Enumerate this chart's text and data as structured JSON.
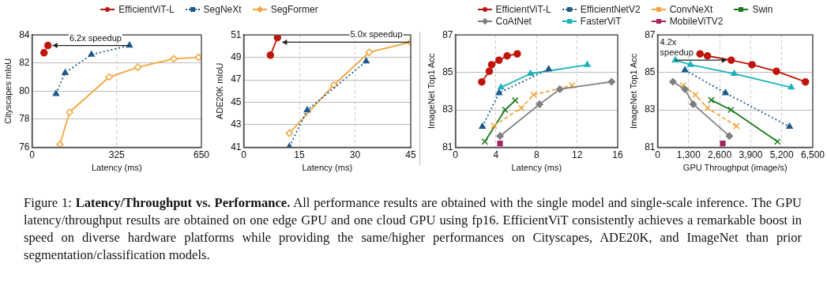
{
  "chart_data": [
    {
      "type": "line",
      "xlabel": "Latency (ms)",
      "ylabel": "Cityscapes mIoU",
      "xlim": [
        0,
        650
      ],
      "ylim": [
        76,
        84
      ],
      "xticks": [
        0,
        325,
        650
      ],
      "yticks": [
        76,
        78,
        80,
        82,
        84
      ],
      "grid": "y",
      "ref_lines": [
        {
          "axis": "x",
          "value": 325,
          "color": "#cccccc",
          "line_style": "dashed"
        }
      ],
      "legend": "top",
      "annotations": [
        {
          "text": "6.2x speedup",
          "x": 374,
          "y": 83.25
        }
      ],
      "series": [
        {
          "name": "EfficientViT-L",
          "color": "#c0150a",
          "marker": "circle",
          "line_style": "dashed",
          "x": [
            46,
            61
          ],
          "values": [
            82.73,
            83.25
          ]
        },
        {
          "name": "SegNeXt",
          "color": "#1c5a8e",
          "marker": "triangle",
          "line_style": "dotted",
          "x": [
            92,
            127,
            228,
            374
          ],
          "values": [
            79.8,
            81.3,
            82.6,
            83.25
          ]
        },
        {
          "name": "SegFormer",
          "color": "#f4a53e",
          "marker": "diamond",
          "line_style": "solid",
          "x": [
            107,
            144,
            296,
            406,
            544,
            639
          ],
          "values": [
            76.2,
            78.5,
            81.0,
            81.7,
            82.3,
            82.4
          ]
        }
      ]
    },
    {
      "type": "line",
      "xlabel": "Latency (ms)",
      "ylabel": "ADE20K mIoU",
      "xlim": [
        0,
        45
      ],
      "ylim": [
        41,
        51
      ],
      "xticks": [
        0,
        15,
        30,
        45
      ],
      "yticks": [
        41,
        43,
        45,
        47,
        49,
        51
      ],
      "grid": true,
      "annotations": [
        {
          "text": "5.0x speedup",
          "x": 44.9,
          "y": 50.35
        }
      ],
      "series": [
        {
          "color": "#c0150a",
          "marker": "circle",
          "line_style": "solid",
          "x": [
            7.2,
            9.1
          ],
          "values": [
            49.2,
            50.76
          ]
        },
        {
          "color": "#1c5a8e",
          "marker": "triangle",
          "line_style": "dotted",
          "x": [
            12.3,
            17.1,
            33.0
          ],
          "values": [
            41.05,
            44.3,
            48.65
          ]
        },
        {
          "color": "#f4a53e",
          "marker": "diamond",
          "line_style": "solid",
          "x": [
            12.3,
            24.3,
            33.8,
            44.9
          ],
          "values": [
            42.25,
            46.55,
            49.45,
            50.35
          ]
        }
      ]
    },
    {
      "type": "line",
      "xlabel": "Latency (ms)",
      "ylabel": "ImageNet Top1 Acc",
      "xlim": [
        0,
        16
      ],
      "ylim": [
        81,
        87
      ],
      "xticks": [
        0,
        4,
        8,
        12,
        16
      ],
      "yticks": [
        81,
        83,
        85,
        87
      ],
      "grid": true,
      "legend": "top",
      "series": [
        {
          "name": "EfficientViT-L",
          "color": "#c0150a",
          "marker": "circle",
          "line_style": "solid",
          "x": [
            2.6,
            3.34,
            3.57,
            4.3,
            5.1,
            6.1
          ],
          "values": [
            84.49,
            85.06,
            85.41,
            85.65,
            85.88,
            85.99
          ]
        },
        {
          "name": "CoAtNet",
          "color": "#7f7f7f",
          "marker": "diamond",
          "line_style": "solid",
          "x": [
            4.4,
            8.3,
            10.3,
            15.4
          ],
          "values": [
            81.6,
            83.3,
            84.1,
            84.5
          ]
        },
        {
          "name": "EfficientNetV2",
          "color": "#1c5a8e",
          "marker": "triangle",
          "line_style": "dotted",
          "x": [
            2.66,
            4.3,
            9.2
          ],
          "values": [
            82.1,
            83.9,
            85.17
          ]
        },
        {
          "name": "FasterViT",
          "color": "#1ab3bb",
          "marker": "triangle",
          "line_style": "solid",
          "x": [
            4.5,
            7.4,
            13.0
          ],
          "values": [
            84.2,
            84.93,
            85.4
          ]
        },
        {
          "name": "ConvNeXt",
          "color": "#f4a53e",
          "marker": "cross",
          "line_style": "dashed",
          "x": [
            3.8,
            6.5,
            7.7,
            11.5
          ],
          "values": [
            82.15,
            83.1,
            83.8,
            84.3
          ]
        },
        {
          "name": "MobileViTV2",
          "color": "#a3245e",
          "marker": "square",
          "line_style": "solid",
          "x": [
            4.4
          ],
          "values": [
            81.2
          ]
        },
        {
          "name": "Swin",
          "color": "#1a7a1a",
          "marker": "cross",
          "line_style": "solid",
          "x": [
            2.9,
            4.9,
            5.9
          ],
          "values": [
            81.3,
            83.0,
            83.5
          ]
        }
      ]
    },
    {
      "type": "line",
      "xlabel": "GPU Throughput (image/s)",
      "ylabel": "ImageNet Top1 Acc",
      "xlim": [
        0,
        6500
      ],
      "ylim": [
        81,
        87
      ],
      "xticks": [
        0,
        {
          "value": 1300,
          "label": "1,300"
        },
        {
          "value": 2600,
          "label": "2,600"
        },
        {
          "value": 3900,
          "label": "3,900"
        },
        {
          "value": 5200,
          "label": "5,200"
        },
        {
          "value": 6500,
          "label": "6,500"
        }
      ],
      "yticks": [
        81,
        83,
        85,
        87
      ],
      "grid": true,
      "annotations": [
        {
          "text": "4.2x speedup",
          "x": 745,
          "y": 85.65
        }
      ],
      "series": [
        {
          "color": "#c0150a",
          "marker": "circle",
          "line_style": "solid",
          "x": [
            1777,
            2087,
            3085,
            3956,
            4977,
            6193
          ],
          "values": [
            85.99,
            85.88,
            85.65,
            85.41,
            85.06,
            84.49
          ]
        },
        {
          "color": "#7f7f7f",
          "marker": "diamond",
          "line_style": "solid",
          "x": [
            642,
            1147,
            1491,
            3005
          ],
          "values": [
            84.5,
            84.1,
            83.3,
            81.6
          ]
        },
        {
          "color": "#1c5a8e",
          "marker": "triangle",
          "line_style": "dotted",
          "x": [
            1147,
            2844,
            5528
          ],
          "values": [
            85.12,
            83.9,
            82.1
          ]
        },
        {
          "color": "#1ab3bb",
          "marker": "triangle",
          "line_style": "solid",
          "x": [
            745,
            1376,
            3211,
            5596
          ],
          "values": [
            85.65,
            85.41,
            84.93,
            84.2
          ]
        },
        {
          "color": "#f4a53e",
          "marker": "cross",
          "line_style": "dashed",
          "x": [
            1067,
            1583,
            2087,
            3303
          ],
          "values": [
            84.3,
            83.8,
            83.1,
            82.13
          ]
        },
        {
          "color": "#a3245e",
          "marker": "square",
          "line_style": "solid",
          "x": [
            2729
          ],
          "values": [
            81.2
          ]
        },
        {
          "color": "#1a7a1a",
          "marker": "cross",
          "line_style": "solid",
          "x": [
            2248,
            3073,
            5023
          ],
          "values": [
            83.52,
            83.0,
            81.3
          ]
        }
      ]
    },
    {
      "type": "other",
      "title": "Latency/Throughput vs. Performance.",
      "annotations": [
        "Figure 1:",
        "All performance results are obtained with the single model and single-scale inference. The GPU latency/throughput results are obtained on one edge GPU and one cloud GPU using fp16. EfficientViT consistently achieves a remarkable boost in speed on diverse hardware platforms while providing the same/higher performances on Cityscapes, ADE20K, and ImageNet than prior segmentation/classification models."
      ]
    }
  ]
}
